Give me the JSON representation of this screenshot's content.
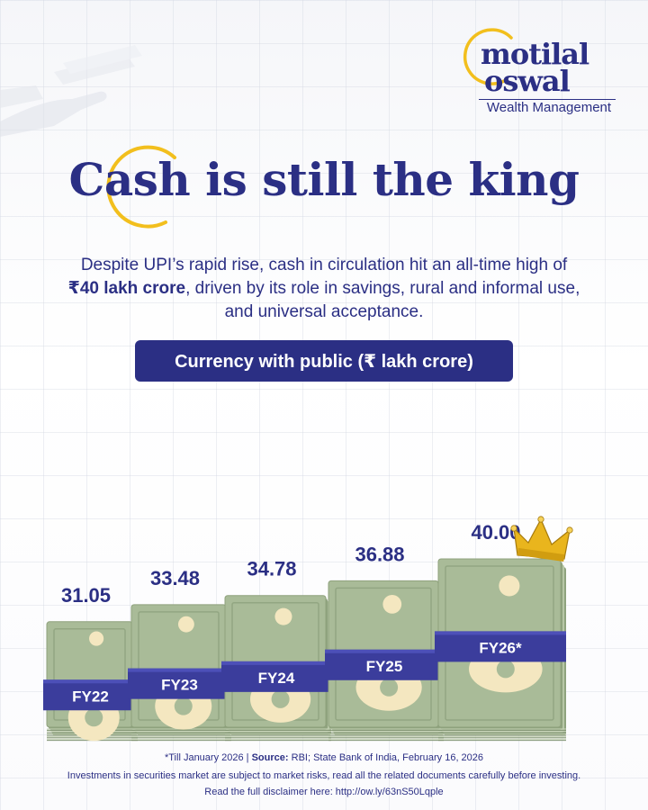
{
  "brand": {
    "name_line1": "motilal",
    "name_line2": "oswal",
    "subtitle": "Wealth Management",
    "colors": {
      "navy": "#2b2f84",
      "gold": "#f2bf1d",
      "note": "#a9bb98",
      "band": "#3b3d9c"
    }
  },
  "title": "Cash is still the king",
  "description": {
    "line1": "Despite UPI’s rapid rise, cash in circulation hit an all-time high of",
    "highlight": "₹40 lakh crore",
    "line2_rest": ", driven by its role in savings, rural and informal use,",
    "line3": "and universal acceptance."
  },
  "pill_label": "Currency with public (₹ lakh crore)",
  "chart_data": {
    "type": "bar",
    "categories": [
      "FY22",
      "FY23",
      "FY24",
      "FY25",
      "FY26*"
    ],
    "values": [
      31.05,
      33.48,
      34.78,
      36.88,
      40.0
    ],
    "value_labels": [
      "31.05",
      "33.48",
      "34.78",
      "36.88",
      "40.00"
    ],
    "ylabel": "Currency with public (₹ lakh crore)",
    "ylim": [
      0,
      40
    ],
    "grid": false,
    "decoration": "crown-icon on highest bar"
  },
  "footer": {
    "note": "*Till January 2026",
    "separator": "|",
    "source_label": "Source:",
    "source_text": "RBI; State Bank of India, February 16, 2026",
    "risk": "Investments in securities market are subject to market risks, read all the related documents carefully before investing.",
    "disclaimer": "Read the full disclaimer here: http://ow.ly/63nS50Lqple"
  }
}
